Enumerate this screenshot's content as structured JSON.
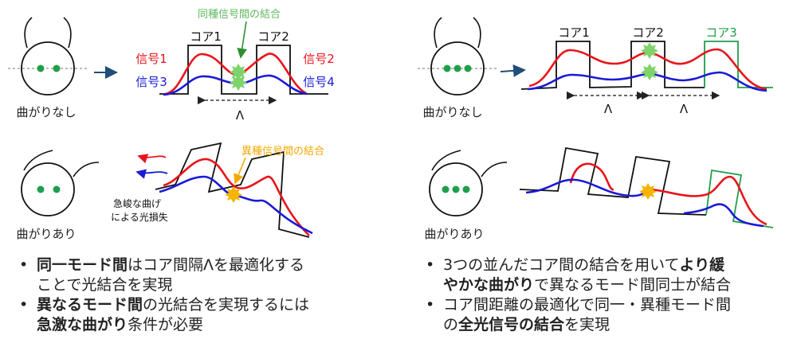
{
  "left": {
    "coupling_same_label": "同種信号間の結合",
    "coupling_diff_label": "異種信号間の結合",
    "core1": "コア1",
    "core2": "コア2",
    "sig1": "信号1",
    "sig2": "信号2",
    "sig3": "信号3",
    "sig4": "信号4",
    "lambda": "Λ",
    "no_bend": "曲がりなし",
    "bend": "曲がりあり",
    "loss_line1": "急峻な曲げ",
    "loss_line2": "による光損失",
    "bullets": [
      {
        "b1": "同一モード間",
        "t1": "はコア間隔Λを最適化する",
        "t2": "ことで光結合を実現"
      },
      {
        "b1": "異なるモード間",
        "t1": "の光結合を実現するには",
        "b2": "急激な曲がり",
        "t2": "条件が必要"
      }
    ]
  },
  "right": {
    "core1": "コア1",
    "core2": "コア2",
    "core3": "コア3",
    "lambda": "Λ",
    "no_bend": "曲がりなし",
    "bend": "曲がりあり",
    "bullets": [
      {
        "t1": "3つの並んだコア間の結合を用いて",
        "b1": "より緩",
        "b2": "やかな曲がり",
        "t2": "で異なるモード間同士が結合"
      },
      {
        "t1": "コア間距離の最適化で同一・異種モード間",
        "t2": "の",
        "b1": "全光信号の結合",
        "t3": "を実現"
      }
    ]
  },
  "colors": {
    "red": "#e8141b",
    "blue": "#1a1ad6",
    "green": "#1f9f4a",
    "label_green": "#5fb85f",
    "orange": "#f5a800",
    "arrow": "#1f4e79",
    "star_green": "#7ed36a"
  }
}
